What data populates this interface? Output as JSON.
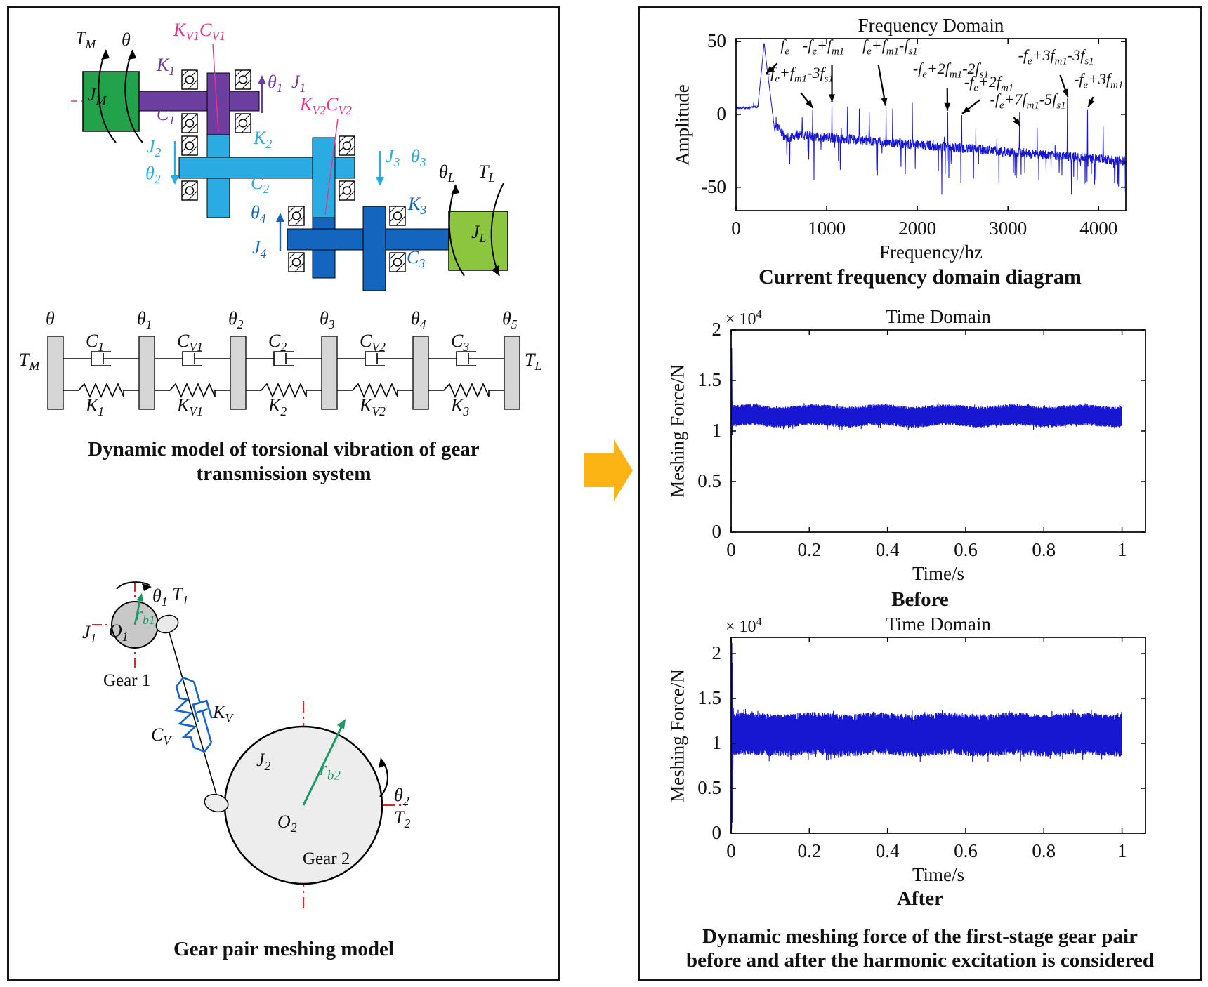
{
  "colors": {
    "arrow_orange": "#FBB414",
    "motor_green": "#21A24B",
    "load_green": "#8CC63F",
    "shaft1_purple": "#6B3EA0",
    "shaft2_cyan": "#2AACE3",
    "shaft3_blue": "#1465BD",
    "mesh_pink": "#E9348C",
    "centerline_red": "#E32222",
    "radius_green": "#1A9962",
    "spring_blue": "#1565C8",
    "plot_line": "#1717D2",
    "block_gray": "#D6D6D6"
  },
  "left_panel": {
    "transmission": {
      "tm": "T_{M}",
      "theta": "θ",
      "jm": "J_{M}",
      "k1": "K_{1}",
      "c1": "C_{1}",
      "kv1cv1": "K_{V1}C_{V1}",
      "theta1": "θ_{1}",
      "j1": "J_{1}",
      "j2": "J_{2}",
      "theta2": "θ_{2}",
      "k2": "K_{2}",
      "c2": "C_{2}",
      "kv2cv2": "K_{V2}C_{V2}",
      "j3": "J_{3}",
      "theta3": "θ_{3}",
      "theta4": "θ_{4}",
      "j4": "J_{4}",
      "k3": "K_{3}",
      "c3": "C_{3}",
      "thetaL": "θ_{L}",
      "tl": "T_{L}",
      "jl": "J_{L}"
    },
    "lumped": {
      "tm": "T_{M}",
      "tl": "T_{L}",
      "block_labels": [
        "θ",
        "θ_{1}",
        "θ_{2}",
        "θ_{3}",
        "θ_{4}",
        "θ_{5}"
      ],
      "damper_labels": [
        "C_{1}",
        "C_{V1}",
        "C_{2}",
        "C_{V2}",
        "C_{3}"
      ],
      "spring_labels": [
        "K_{1}",
        "K_{V1}",
        "K_{2}",
        "K_{V2}",
        "K_{3}"
      ]
    },
    "caption1_line1": "Dynamic model of torsional vibration of gear",
    "caption1_line2": "transmission system",
    "gear_pair": {
      "gear1": "Gear 1",
      "gear2": "Gear 2",
      "j1": "J_{1}",
      "o1": "O_{1}",
      "theta1": "θ_{1}",
      "t1": "T_{1}",
      "rb1": "r_{b1}",
      "kv": "K_{V}",
      "cv": "C_{V}",
      "j2": "J_{2}",
      "o2": "O_{2}",
      "rb2": "r_{b2}",
      "theta2": "θ_{2}",
      "t2": "T_{2}"
    },
    "caption2": "Gear pair meshing model"
  },
  "right_panel": {
    "caption_freq": "Current frequency domain diagram",
    "caption_bottom_line1": "Dynamic meshing force of the first-stage gear pair",
    "caption_bottom_line2": "before and after the harmonic excitation is considered"
  },
  "chart_data": [
    {
      "type": "line",
      "title": "Frequency Domain",
      "xlabel": "Frequency/hz",
      "ylabel": "Amplitude",
      "xlim": [
        0,
        4300
      ],
      "ylim": [
        -66,
        52
      ],
      "xticks": [
        0,
        1000,
        2000,
        3000,
        4000
      ],
      "yticks": [
        50,
        0,
        -50
      ],
      "grid": false,
      "legend": null,
      "line_color": "#1717D2",
      "baseline": {
        "flat_level": 4.5,
        "flat_end": 240,
        "peak_x": 310,
        "peak_y": 48.5,
        "post_peak_level": -13,
        "end_level": -32,
        "noise_amp": 3.3
      },
      "peaks": [
        [
          195,
          8.5
        ],
        [
          310,
          48.5
        ],
        [
          730,
          -2
        ],
        [
          845,
          3.5
        ],
        [
          1058,
          7
        ],
        [
          1230,
          5.5
        ],
        [
          1360,
          4
        ],
        [
          1470,
          2
        ],
        [
          1655,
          5
        ],
        [
          1727,
          4
        ],
        [
          1945,
          8
        ],
        [
          2335,
          1.5
        ],
        [
          2490,
          -0.5
        ],
        [
          2646,
          -10
        ],
        [
          3128,
          1.4
        ],
        [
          3323,
          -9
        ],
        [
          3655,
          11
        ],
        [
          3878,
          3.5
        ],
        [
          4050,
          -8
        ]
      ],
      "dips": [
        [
          560,
          -28
        ],
        [
          860,
          -45
        ],
        [
          1150,
          -38
        ],
        [
          1560,
          -42
        ],
        [
          1820,
          -36
        ],
        [
          2270,
          -55
        ],
        [
          2620,
          -44
        ],
        [
          2900,
          -47
        ],
        [
          3060,
          -40
        ],
        [
          3420,
          -38
        ],
        [
          3700,
          -55
        ],
        [
          3950,
          -46
        ],
        [
          4180,
          -50
        ]
      ],
      "annotations": [
        {
          "label": "f_{e}",
          "lx": 540,
          "ly": 41,
          "x1": 455,
          "y1": 35,
          "x2": 332,
          "y2": 28
        },
        {
          "label": "-f_{e}+f_{m1}-3f_{s1}",
          "lx": 700,
          "ly": 22,
          "x1": 712,
          "y1": 15,
          "x2": 848,
          "y2": 4.5
        },
        {
          "label": "-f_{e}+f_{m1}",
          "lx": 965,
          "ly": 41,
          "x1": 1058,
          "y1": 34,
          "x2": 1058,
          "y2": 8.5
        },
        {
          "label": "f_{e}+f_{m1}-f_{s1}",
          "lx": 1700,
          "ly": 41,
          "x1": 1570,
          "y1": 34,
          "x2": 1650,
          "y2": 6
        },
        {
          "label": "-f_{e}+2f_{m1}-2f_{s1}",
          "lx": 2370,
          "ly": 25,
          "x1": 2330,
          "y1": 18,
          "x2": 2332,
          "y2": 2.5
        },
        {
          "label": "-f_{e}+2f_{m1}",
          "lx": 2790,
          "ly": 16,
          "x1": 2690,
          "y1": 10,
          "x2": 2495,
          "y2": 0.5
        },
        {
          "label": "-f_{e}+7f_{m1}-5f_{s1}",
          "lx": 3220,
          "ly": 4,
          "x1": 3065,
          "y1": -2,
          "x2": 3135,
          "y2": -8
        },
        {
          "label": "-f_{e}+3f_{m1}-3f_{s1}",
          "lx": 3530,
          "ly": 34,
          "x1": 3575,
          "y1": 27,
          "x2": 3660,
          "y2": 12
        },
        {
          "label": "-f_{e}+3f_{m1}",
          "lx": 4000,
          "ly": 18,
          "x1": 3940,
          "y1": 12,
          "x2": 3885,
          "y2": 5
        }
      ]
    },
    {
      "type": "line",
      "title": "Time Domain",
      "multiplier": "× 10^{4}",
      "xlabel": "Time/s",
      "ylabel": "Meshing Force/N",
      "xlim": [
        0,
        1.06
      ],
      "ylim": [
        0,
        2
      ],
      "xticks": [
        0,
        0.2,
        0.4,
        0.6,
        0.8,
        1
      ],
      "yticks": [
        0,
        0.5,
        1,
        1.5,
        2
      ],
      "grid": false,
      "line_color": "#1717D2",
      "band": {
        "mean": 1.15,
        "half_width": 0.095,
        "t_start": 0.004,
        "step": 0.0007
      },
      "lead_in": [
        [
          0,
          0
        ],
        [
          0.0015,
          1.82
        ],
        [
          0.0028,
          0.96
        ],
        [
          0.004,
          1.3
        ]
      ],
      "caption": "Before"
    },
    {
      "type": "line",
      "title": "Time Domain",
      "multiplier": "× 10^{4}",
      "xlabel": "Time/s",
      "ylabel": "Meshing Force/N",
      "xlim": [
        0,
        1.06
      ],
      "ylim": [
        0,
        2.18
      ],
      "xticks": [
        0,
        0.2,
        0.4,
        0.6,
        0.8,
        1
      ],
      "yticks": [
        0,
        0.5,
        1,
        1.5,
        2
      ],
      "grid": false,
      "line_color": "#1717D2",
      "band": {
        "mean": 1.1,
        "half_width": 0.215,
        "t_start": 0.006,
        "step": 0.0007
      },
      "lead_in": [
        [
          0,
          0
        ],
        [
          0.0006,
          2.18
        ],
        [
          0.0012,
          0.05
        ],
        [
          0.0018,
          2.12
        ],
        [
          0.0025,
          0.12
        ],
        [
          0.0035,
          1.9
        ],
        [
          0.0045,
          0.7
        ],
        [
          0.0055,
          1.4
        ]
      ],
      "caption": "After"
    }
  ]
}
